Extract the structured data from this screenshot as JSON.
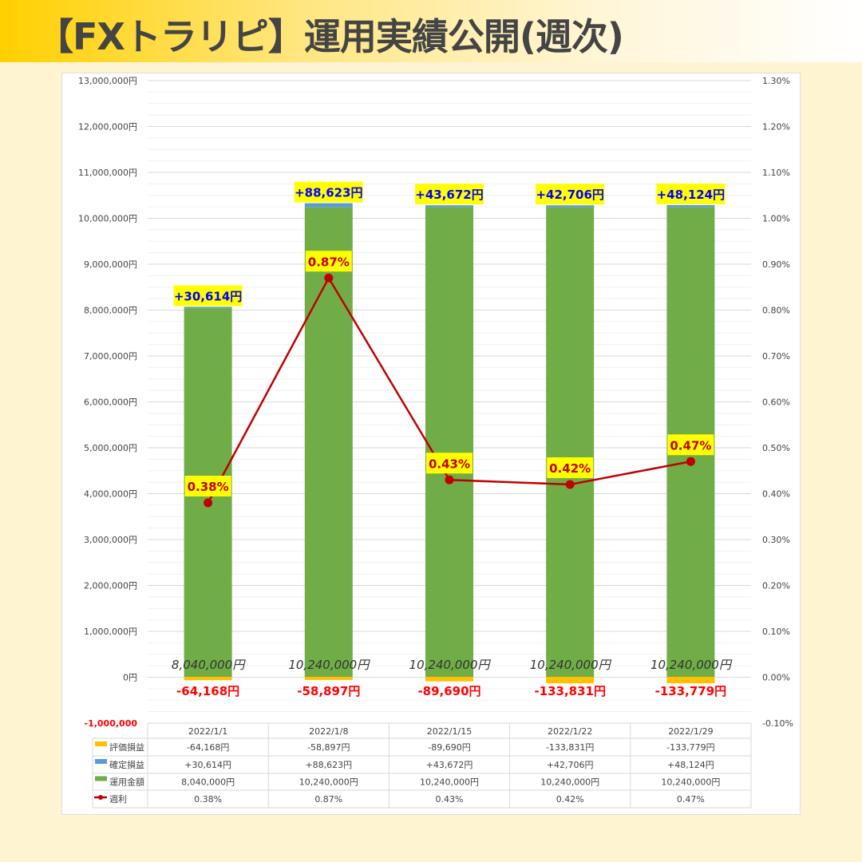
{
  "title": "【FXトラリピ】運用実績公開(週次)",
  "chart_data": {
    "type": "bar",
    "stacked": true,
    "categories": [
      "2022/1/1",
      "2022/1/8",
      "2022/1/15",
      "2022/1/22",
      "2022/1/29"
    ],
    "series": [
      {
        "name": "評価損益",
        "values": [
          -64168,
          -58897,
          -89690,
          -133831,
          -133779
        ],
        "labels": [
          "-64,168円",
          "-58,897円",
          "-89,690円",
          "-133,831円",
          "-133,779円"
        ],
        "color": "#ffc000"
      },
      {
        "name": "確定損益",
        "values": [
          30614,
          88623,
          43672,
          42706,
          48124
        ],
        "labels": [
          "+30,614円",
          "+88,623円",
          "+43,672円",
          "+42,706円",
          "+48,124円"
        ],
        "color": "#5b9bd5"
      },
      {
        "name": "運用金額",
        "values": [
          8040000,
          10240000,
          10240000,
          10240000,
          10240000
        ],
        "labels": [
          "8,040,000円",
          "10,240,000円",
          "10,240,000円",
          "10,240,000円",
          "10,240,000円"
        ],
        "color": "#70ad47"
      },
      {
        "name": "週利",
        "type": "line",
        "axis": "right",
        "values": [
          0.38,
          0.87,
          0.43,
          0.42,
          0.47
        ],
        "labels": [
          "0.38%",
          "0.87%",
          "0.43%",
          "0.42%",
          "0.47%"
        ],
        "color": "#c00000"
      }
    ],
    "left_axis": {
      "ylim": [
        -1000000,
        13000000
      ],
      "ticks": [
        "13,000,000円",
        "12,000,000円",
        "11,000,000円",
        "10,000,000円",
        "9,000,000円",
        "8,000,000円",
        "7,000,000円",
        "6,000,000円",
        "5,000,000円",
        "4,000,000円",
        "3,000,000円",
        "2,000,000円",
        "1,000,000円",
        "0円",
        "-1,000,000"
      ]
    },
    "right_axis": {
      "ylim": [
        -0.1,
        1.3
      ],
      "ticks": [
        "1.30%",
        "1.20%",
        "1.10%",
        "1.00%",
        "0.90%",
        "0.80%",
        "0.70%",
        "0.60%",
        "0.50%",
        "0.40%",
        "0.30%",
        "0.20%",
        "0.10%",
        "0.00%",
        "-0.10%"
      ]
    },
    "legend": "data-table-bottom",
    "grid": true
  }
}
